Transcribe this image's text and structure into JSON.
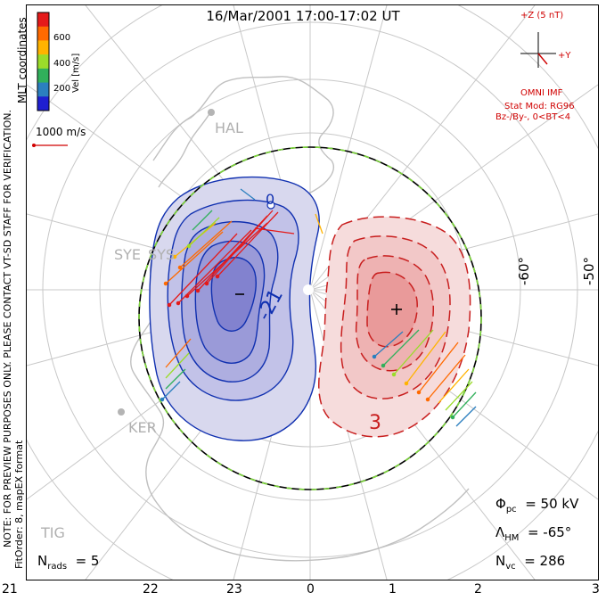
{
  "title": "16/Mar/2001 17:00-17:02 UT",
  "colorbar": {
    "label": "Vel [m/s]",
    "ticks": [
      "600",
      "400",
      "200"
    ],
    "colors": [
      "#e41a1a",
      "#ff6a00",
      "#ffb300",
      "#9bdc2a",
      "#31b05b",
      "#2b7fbf",
      "#1f1fd1"
    ]
  },
  "coords_label": "MLT coordinates",
  "velocity_scale": "1000 m/s",
  "imf": {
    "plus_z": "+Z (5 nT)",
    "plus_y": "+Y",
    "source": "OMNI IMF",
    "model": "Stat Mod: RG96",
    "condition": "Bz-/By-, 0<BT<4"
  },
  "stations": [
    "HAL",
    "SYE",
    "SYS",
    "KER",
    "TIG"
  ],
  "contour_labels": {
    "negative": "-21",
    "zero": "0",
    "positive": "3"
  },
  "lat_labels": [
    "-60°",
    "-50°"
  ],
  "mlt_ticks": [
    "21",
    "22",
    "23",
    "0",
    "1",
    "2",
    "3"
  ],
  "notes": {
    "preview": "NOTE: FOR PREVIEW PURPOSES ONLY. PLEASE CONTACT VT-SD STAFF FOR VERIFICATION.",
    "fit": "FitOrder: 8, mapEX format"
  },
  "stats": {
    "phi_label": "Φ",
    "phi_sub": "pc",
    "phi_value": "= 50 kV",
    "lambda_label": "Λ",
    "lambda_sub": "HM",
    "lambda_value": "= -65°",
    "nvc_label": "N",
    "nvc_sub": "vc",
    "nvc_value": "= 286",
    "nrads_label": "N",
    "nrads_sub": "rads",
    "nrads_value": "= 5"
  }
}
